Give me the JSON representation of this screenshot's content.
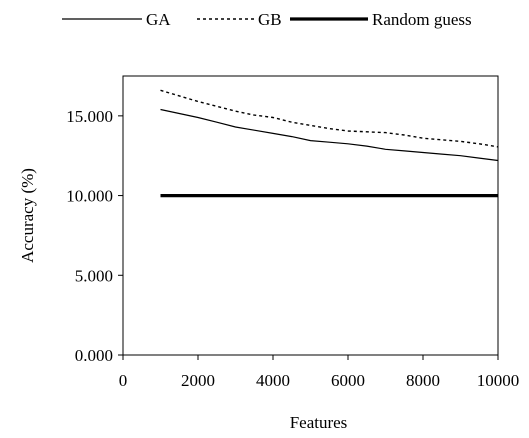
{
  "chart_data": {
    "type": "line",
    "title": "",
    "xlabel": "Features",
    "ylabel": "Accuracy (%)",
    "xlim": [
      0,
      10000
    ],
    "ylim": [
      0,
      17.5
    ],
    "x_ticks": [
      0,
      2000,
      4000,
      6000,
      8000,
      10000
    ],
    "x_tick_labels": [
      "0",
      "2000",
      "4000",
      "6000",
      "8000",
      "10000"
    ],
    "y_ticks": [
      0,
      5,
      10,
      15
    ],
    "y_tick_labels": [
      "0.000",
      "5.000",
      "10.000",
      "15.000"
    ],
    "grid": false,
    "legend_position": "top",
    "series": [
      {
        "name": "GA",
        "style": "solid",
        "x": [
          1000,
          2000,
          2500,
          3000,
          3500,
          4000,
          4500,
          5000,
          5500,
          6000,
          6500,
          7000,
          7500,
          8000,
          8500,
          9000,
          9500,
          10000
        ],
        "values": [
          15.4,
          14.9,
          14.6,
          14.3,
          14.1,
          13.9,
          13.7,
          13.45,
          13.35,
          13.25,
          13.1,
          12.9,
          12.8,
          12.7,
          12.6,
          12.5,
          12.35,
          12.2
        ]
      },
      {
        "name": "GB",
        "style": "dotted",
        "x": [
          1000,
          2000,
          2500,
          3000,
          3500,
          4000,
          4500,
          5000,
          5500,
          6000,
          6500,
          7000,
          7500,
          8000,
          8500,
          9000,
          9500,
          10000
        ],
        "values": [
          16.6,
          15.9,
          15.6,
          15.3,
          15.05,
          14.9,
          14.6,
          14.4,
          14.2,
          14.05,
          14.0,
          13.95,
          13.8,
          13.6,
          13.5,
          13.4,
          13.25,
          13.05
        ]
      },
      {
        "name": "Random guess",
        "style": "thick",
        "x": [
          1000,
          10000
        ],
        "values": [
          10,
          10
        ]
      }
    ]
  }
}
